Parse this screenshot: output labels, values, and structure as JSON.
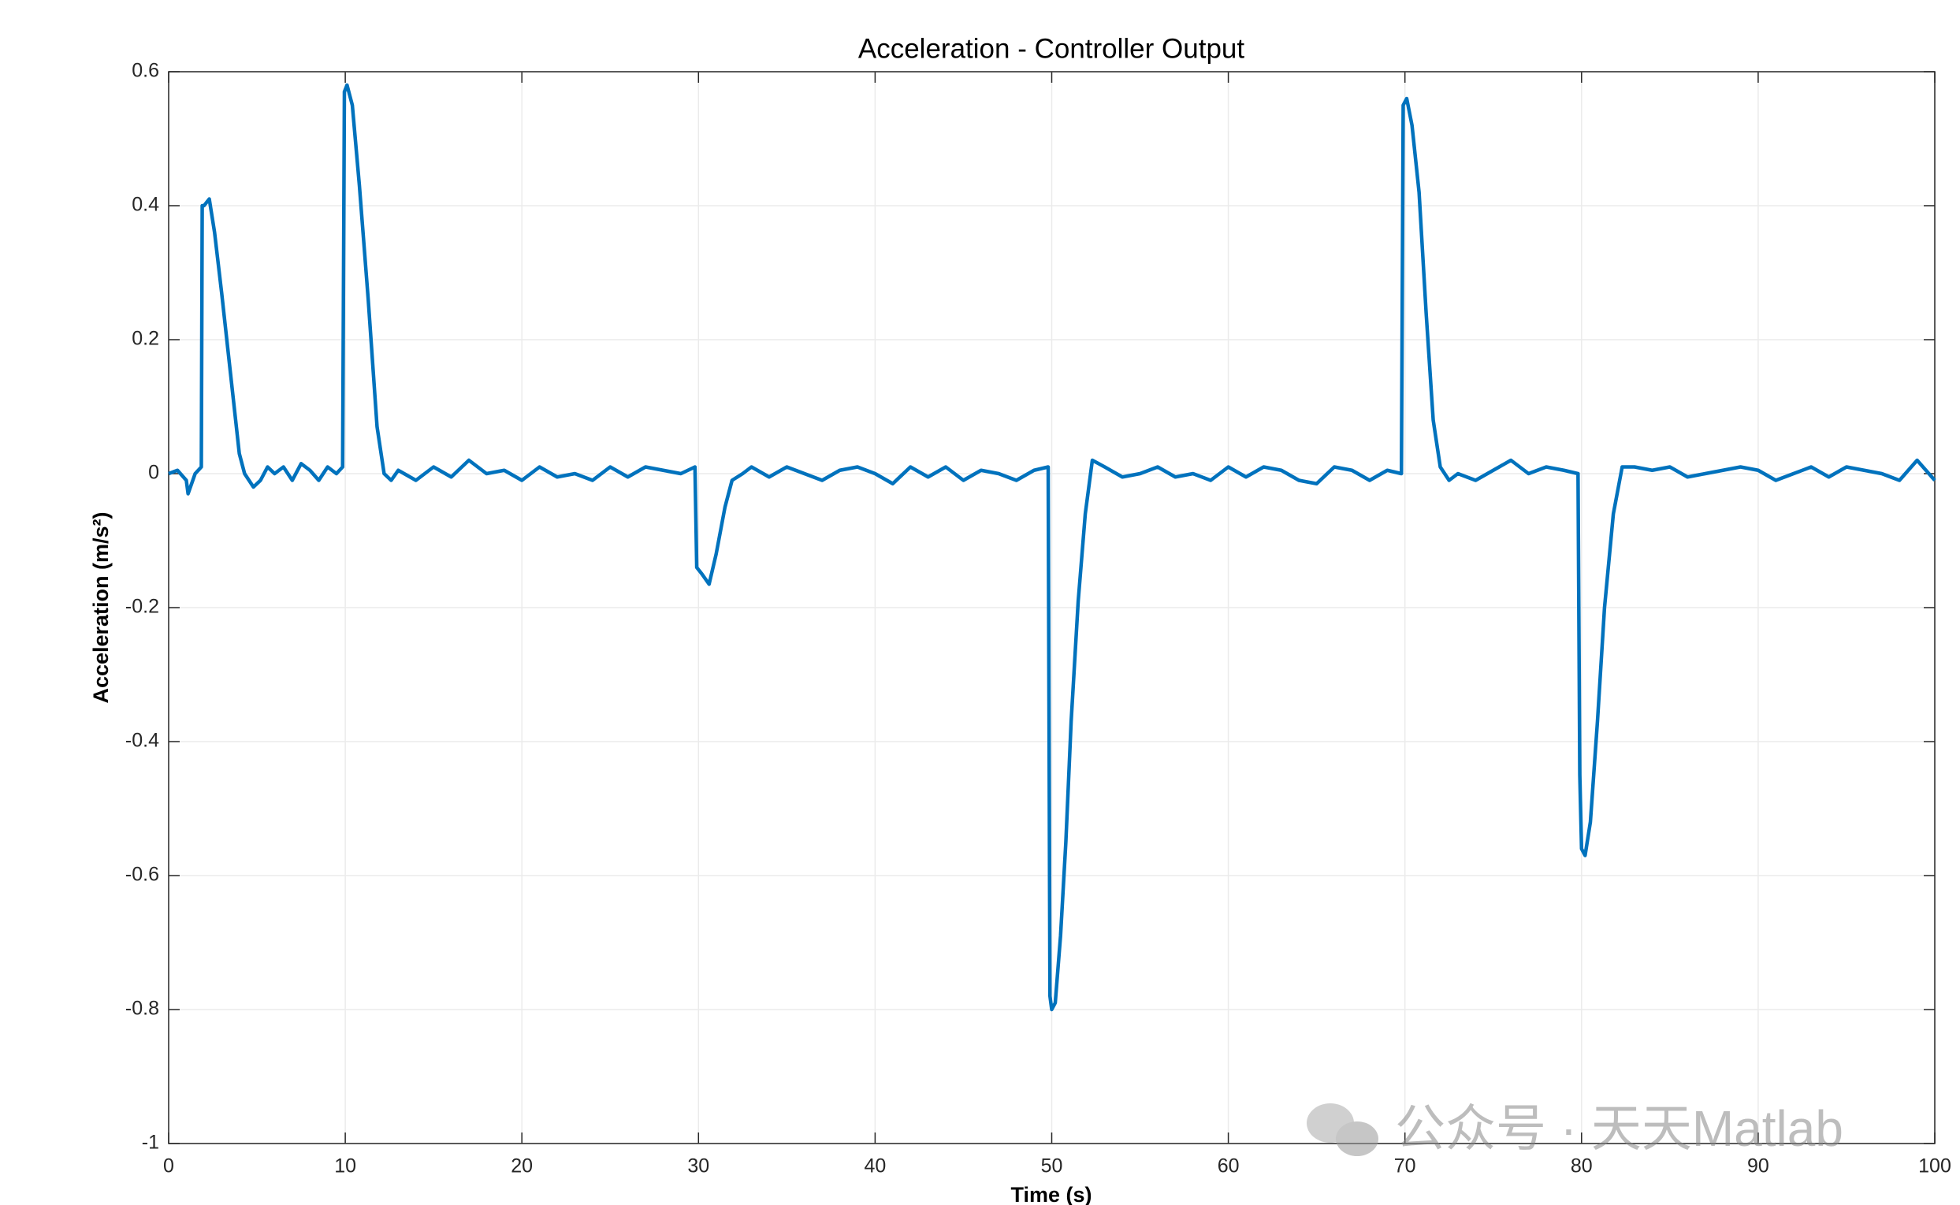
{
  "chart_data": {
    "type": "line",
    "title": "Acceleration - Controller Output",
    "xlabel": "Time (s)",
    "ylabel": "Acceleration (m/s²)",
    "watermark": "公众号 · 天天Matlab",
    "xlim": [
      0,
      100
    ],
    "xticks": [
      0,
      10,
      20,
      30,
      40,
      50,
      60,
      70,
      80,
      90,
      100
    ],
    "ylim": [
      -1,
      0.6
    ],
    "yticks": [
      -1,
      -0.8,
      -0.6,
      -0.4,
      -0.2,
      0,
      0.2,
      0.4,
      0.6
    ],
    "grid": true,
    "color": "#0072bd",
    "x": [
      0,
      0.5,
      1,
      1.1,
      1.5,
      1.85,
      1.9,
      2.0,
      2.3,
      2.6,
      3,
      3.5,
      4,
      4.3,
      4.8,
      5.2,
      5.6,
      6,
      6.5,
      7,
      7.5,
      8,
      8.5,
      9,
      9.5,
      9.85,
      9.95,
      10.1,
      10.4,
      10.8,
      11.3,
      11.8,
      12.2,
      12.6,
      13,
      14,
      15,
      16,
      17,
      18,
      19,
      20,
      21,
      22,
      23,
      24,
      25,
      26,
      27,
      28,
      29,
      29.8,
      29.9,
      30.2,
      30.6,
      31,
      31.5,
      31.9,
      32.5,
      33,
      34,
      35,
      36,
      37,
      38,
      39,
      40,
      41,
      42,
      43,
      44,
      45,
      46,
      47,
      48,
      49,
      49.8,
      49.9,
      50.0,
      50.2,
      50.5,
      50.8,
      51.1,
      51.5,
      51.9,
      52.3,
      53,
      54,
      55,
      56,
      57,
      58,
      59,
      60,
      61,
      62,
      63,
      64,
      65,
      66,
      67,
      68,
      69,
      69.8,
      69.9,
      70.1,
      70.4,
      70.8,
      71.2,
      71.6,
      72,
      72.5,
      73,
      74,
      75,
      76,
      77,
      78,
      79,
      79.8,
      79.9,
      80.0,
      80.2,
      80.5,
      80.9,
      81.3,
      81.8,
      82.3,
      83,
      84,
      85,
      86,
      87,
      88,
      89,
      90,
      91,
      92,
      93,
      94,
      95,
      96,
      97,
      98,
      99,
      99.5,
      100
    ],
    "values": [
      0,
      0.005,
      -0.01,
      -0.03,
      0.0,
      0.01,
      0.4,
      0.4,
      0.41,
      0.36,
      0.27,
      0.15,
      0.03,
      0.0,
      -0.02,
      -0.01,
      0.01,
      0.0,
      0.01,
      -0.01,
      0.015,
      0.005,
      -0.01,
      0.01,
      0.0,
      0.01,
      0.57,
      0.58,
      0.55,
      0.43,
      0.26,
      0.07,
      0.0,
      -0.01,
      0.005,
      -0.01,
      0.01,
      -0.005,
      0.02,
      0.0,
      0.005,
      -0.01,
      0.01,
      -0.005,
      0.0,
      -0.01,
      0.01,
      -0.005,
      0.01,
      0.005,
      0.0,
      0.01,
      -0.14,
      -0.15,
      -0.165,
      -0.12,
      -0.05,
      -0.01,
      0.0,
      0.01,
      -0.005,
      0.01,
      0.0,
      -0.01,
      0.005,
      0.01,
      0.0,
      -0.015,
      0.01,
      -0.005,
      0.01,
      -0.01,
      0.005,
      0.0,
      -0.01,
      0.005,
      0.01,
      -0.78,
      -0.8,
      -0.79,
      -0.69,
      -0.55,
      -0.37,
      -0.19,
      -0.06,
      0.02,
      0.01,
      -0.005,
      0.0,
      0.01,
      -0.005,
      0.0,
      -0.01,
      0.01,
      -0.005,
      0.01,
      0.005,
      -0.01,
      -0.015,
      0.01,
      0.005,
      -0.01,
      0.005,
      0.0,
      0.55,
      0.56,
      0.52,
      0.42,
      0.24,
      0.08,
      0.01,
      -0.01,
      0.0,
      -0.01,
      0.005,
      0.02,
      0.0,
      0.01,
      0.005,
      0.0,
      -0.45,
      -0.56,
      -0.57,
      -0.52,
      -0.37,
      -0.2,
      -0.06,
      0.01,
      0.01,
      0.005,
      0.01,
      -0.005,
      0.0,
      0.005,
      0.01,
      0.005,
      -0.01,
      0.0,
      0.01,
      -0.005,
      0.01,
      0.005,
      0.0,
      -0.01,
      0.02,
      0.005,
      -0.01
    ]
  }
}
